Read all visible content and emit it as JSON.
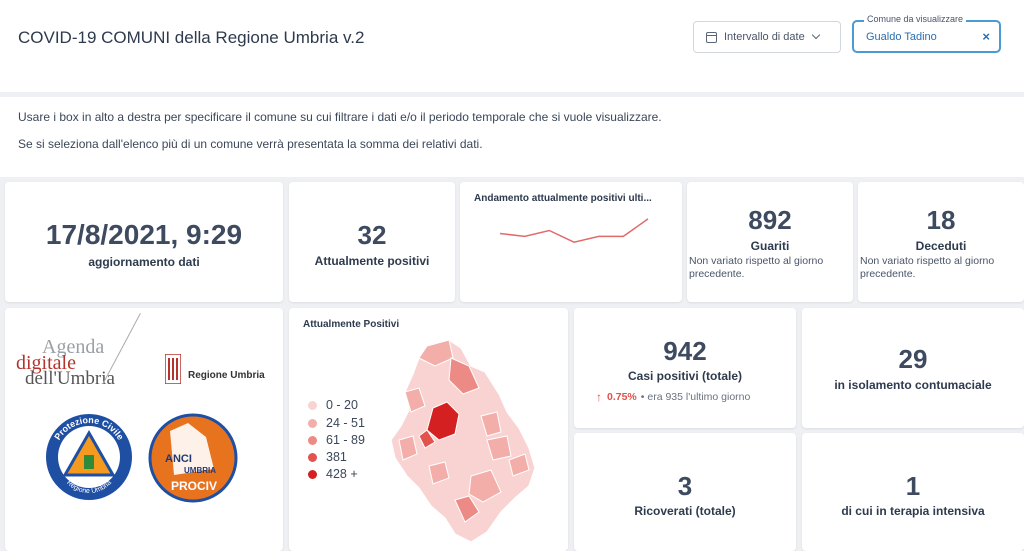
{
  "header": {
    "title": "COVID-19 COMUNI della Regione Umbria v.2",
    "date_range_label": "Intervallo di date",
    "comune_legend": "Comune da visualizzare",
    "comune_value": "Gualdo Tadino",
    "clear_symbol": "×"
  },
  "info": {
    "line1": "Usare i box in alto a destra per specificare il comune su cui filtrare i dati e/o il periodo temporale che si vuole visualizzare.",
    "line2": "Se si seleziona dall'elenco più di un comune verrà presentata la somma dei relativi dati."
  },
  "update": {
    "value": "17/8/2021, 9:29",
    "label": "aggiornamento dati"
  },
  "positivi": {
    "value": "32",
    "label": "Attualmente positivi"
  },
  "trend": {
    "title": "Andamento attualmente positivi ulti...",
    "values": [
      33,
      32,
      34,
      30,
      32,
      32,
      38
    ]
  },
  "guariti": {
    "value": "892",
    "label": "Guariti",
    "note": "Non variato rispetto al giorno precedente."
  },
  "deceduti": {
    "value": "18",
    "label": "Deceduti",
    "note": "Non variato rispetto al giorno precedente."
  },
  "logos": {
    "agenda_line1": "Agenda",
    "agenda_line2": "digitale",
    "agenda_line3": "dell'Umbria",
    "regione": "Regione Umbria",
    "protezione_top": "Protezione Civile",
    "protezione_bottom": "Regione Umbria",
    "anci_1": "ANCI",
    "anci_2": "UMBRIA",
    "anci_3": "PROCIV"
  },
  "map": {
    "title": "Attualmente Positivi",
    "legend": [
      {
        "label": "0 - 20",
        "color": "#f9d3d1"
      },
      {
        "label": "24 - 51",
        "color": "#f3aeaa"
      },
      {
        "label": "61 - 89",
        "color": "#ec8a85"
      },
      {
        "label": "381",
        "color": "#e3524c"
      },
      {
        "label": "428 +",
        "color": "#d42020"
      }
    ]
  },
  "casi": {
    "value": "942",
    "label": "Casi positivi (totale)",
    "delta": "0.75%",
    "delta_note": "• era 935  l'ultimo giorno"
  },
  "isolamento": {
    "value": "29",
    "label": "in isolamento contumaciale"
  },
  "ricoverati": {
    "value": "3",
    "label": "Ricoverati (totale)"
  },
  "terapia": {
    "value": "1",
    "label": "di cui in terapia intensiva"
  },
  "colors": {
    "accent": "#4a9ad4",
    "trend_line": "#e06b6b",
    "delta_up": "#e0524c"
  }
}
